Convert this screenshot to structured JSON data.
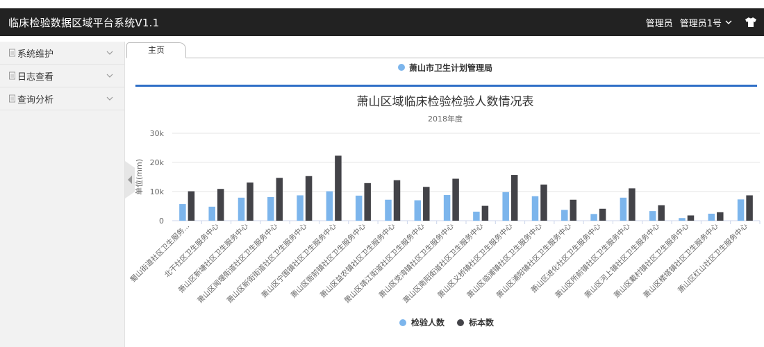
{
  "header": {
    "title": "临床检验数据区域平台系统V1.1",
    "role": "管理员",
    "user": "管理员1号"
  },
  "sidebar": {
    "items": [
      {
        "label": "系统维护"
      },
      {
        "label": "日志查看"
      },
      {
        "label": "查询分析"
      }
    ]
  },
  "tabs": [
    {
      "label": "主页"
    }
  ],
  "filter": {
    "label": "萧山市卫生计划管理局",
    "color": "#7cb5ec"
  },
  "colors": {
    "series1": "#7cb5ec",
    "series2": "#434348",
    "accent": "#2f6fc7"
  },
  "chart_data": {
    "type": "bar",
    "title": "萧山区域临床检验检验人数情况表",
    "subtitle": "2018年度",
    "ylabel": "单位(mm)",
    "ylim": [
      0,
      30000
    ],
    "yticks": [
      "0",
      "10k",
      "20k",
      "30k"
    ],
    "categories": [
      "蜀山街道社区卫生服务...",
      "北干社区卫生服务中心",
      "萧山区新塘社区卫生服务中心",
      "萧山区闻堰街道社区卫生服务中心",
      "萧山区新街街道社区卫生服务中心",
      "萧山区宁围镇社区卫生服务中心",
      "萧山区衙前镇社区卫生服务中心",
      "萧山区益农镇社区卫生服务中心",
      "萧山区靖江街道社区卫生服务中心",
      "萧山区党湾镇社区卫生服务中心",
      "萧山区南阳街道社区卫生服务中心",
      "萧山区义桥镇社区卫生服务中心",
      "萧山区临浦镇社区卫生服务中心",
      "萧山区浦阳镇社区卫生服务中心",
      "萧山区进化社区卫生服务中心",
      "萧山区所前镇社区卫生服务中心",
      "萧山区河上镇社区卫生服务中心",
      "萧山区戴村镇社区卫生服务中心",
      "萧山区楼塔镇社区卫生服务中心",
      "萧山区红山社区卫生服务中心"
    ],
    "series": [
      {
        "name": "检验人数",
        "values": [
          5700,
          4800,
          7900,
          8100,
          8700,
          10100,
          8600,
          7200,
          7000,
          8800,
          3100,
          9800,
          8400,
          3700,
          2300,
          7900,
          3300,
          900,
          2400,
          7300
        ]
      },
      {
        "name": "标本数",
        "values": [
          10100,
          10900,
          13100,
          14700,
          15300,
          22300,
          12900,
          13900,
          11600,
          14400,
          5100,
          15700,
          12400,
          7200,
          4100,
          11100,
          5300,
          1800,
          2900,
          8700
        ]
      }
    ],
    "grid": true,
    "legend": "bottom-center"
  }
}
